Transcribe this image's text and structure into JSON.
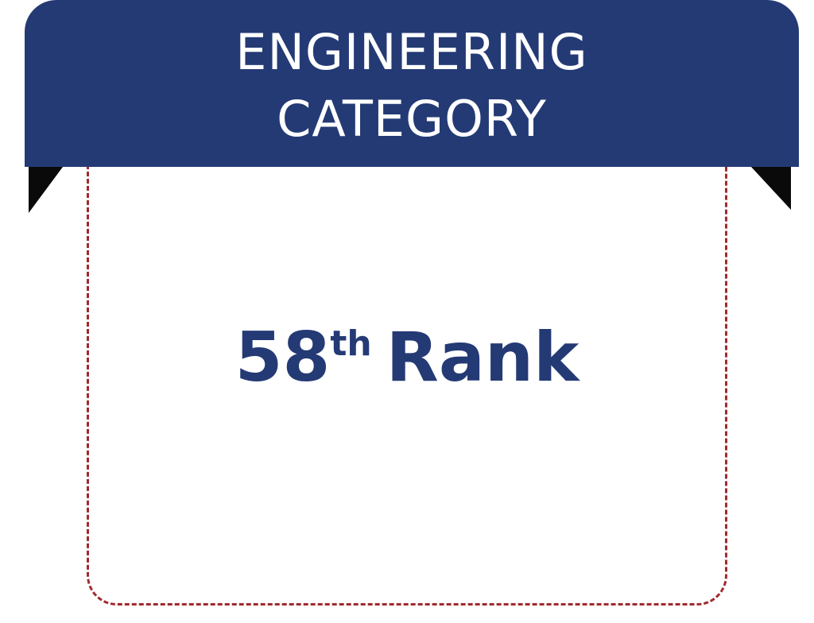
{
  "banner": {
    "line1": "ENGINEERING",
    "line2": "CATEGORY"
  },
  "rank": {
    "number": "58",
    "suffix": "th",
    "label": "Rank"
  },
  "colors": {
    "banner": "#243a75",
    "border": "#a02a2e",
    "fold": "#0a0a0a"
  }
}
